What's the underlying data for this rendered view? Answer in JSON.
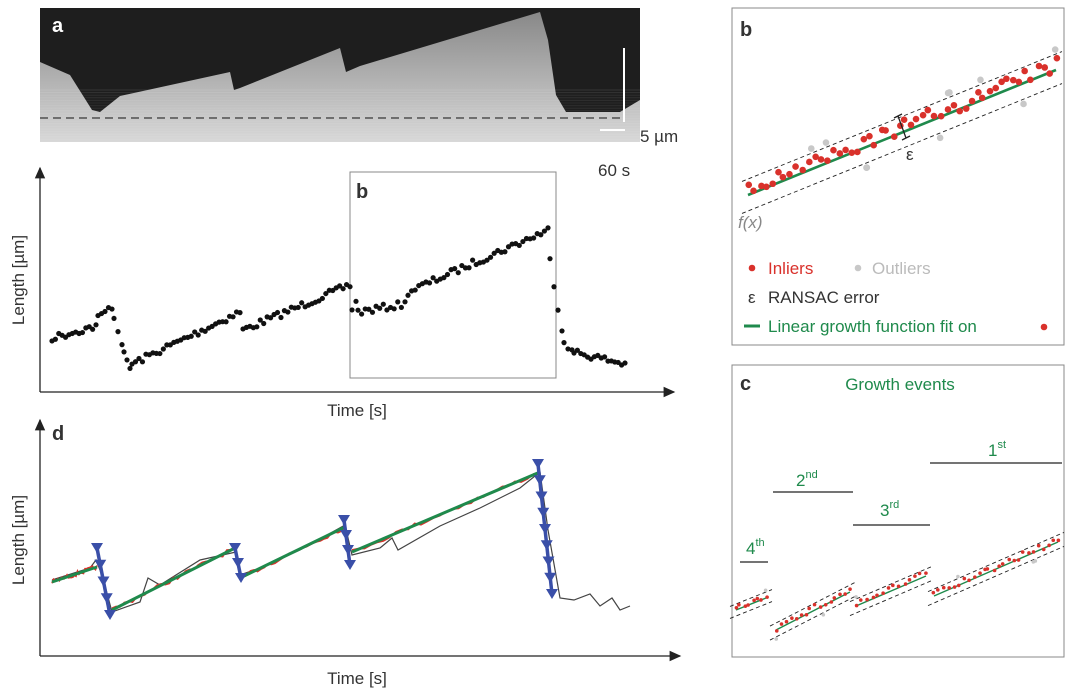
{
  "panel_a": {
    "label": "a",
    "scale_length": "5 µm",
    "scale_time": "60 s"
  },
  "panel_main": {
    "y_label": "Length [µm]",
    "x_label": "Time [s]",
    "inset_label": "b"
  },
  "panel_b": {
    "label": "b",
    "epsilon": "ε",
    "fx": "f(x)",
    "legend": {
      "inliers": "Inliers",
      "outliers": "Outliers",
      "error_symbol": "ε",
      "error": "RANSAC error",
      "fit": "Linear growth function fit on"
    }
  },
  "panel_c": {
    "label": "c",
    "title": "Growth events",
    "events": [
      {
        "ordinal": "1",
        "suffix": "st"
      },
      {
        "ordinal": "2",
        "suffix": "nd"
      },
      {
        "ordinal": "3",
        "suffix": "rd"
      },
      {
        "ordinal": "4",
        "suffix": "th"
      }
    ]
  },
  "panel_d": {
    "label": "d",
    "y_label": "Length [µm]",
    "x_label": "Time [s]"
  }
}
